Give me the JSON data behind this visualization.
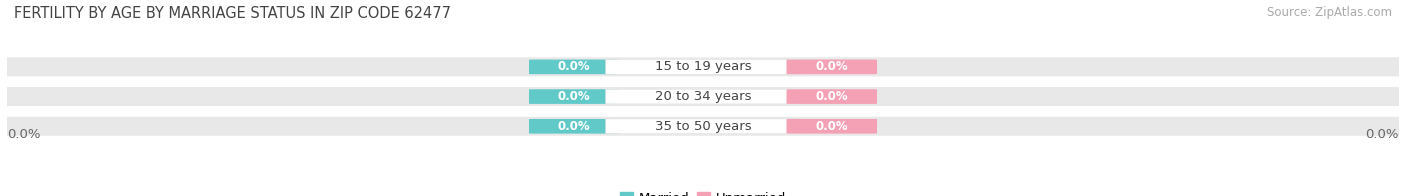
{
  "title": "FERTILITY BY AGE BY MARRIAGE STATUS IN ZIP CODE 62477",
  "source": "Source: ZipAtlas.com",
  "categories": [
    "15 to 19 years",
    "20 to 34 years",
    "35 to 50 years"
  ],
  "married_values": [
    0.0,
    0.0,
    0.0
  ],
  "unmarried_values": [
    0.0,
    0.0,
    0.0
  ],
  "married_color": "#62c9c9",
  "unmarried_color": "#f4a0b5",
  "bar_bg_color": "#e8e8e8",
  "label_text_color": "white",
  "category_text_color": "#444444",
  "axis_label_color": "#666666",
  "title_color": "#444444",
  "source_color": "#aaaaaa",
  "bg_color": "#ffffff",
  "title_fontsize": 10.5,
  "source_fontsize": 8.5,
  "tick_fontsize": 9.5,
  "bar_label_fontsize": 8.5,
  "category_fontsize": 9.5,
  "legend_fontsize": 9.5,
  "figsize": [
    14.06,
    1.96
  ],
  "dpi": 100
}
